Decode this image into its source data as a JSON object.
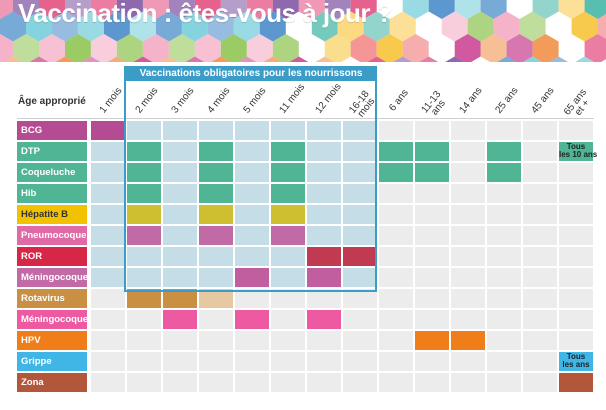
{
  "title": "Vaccination : êtes-vous à jour ?",
  "header": {
    "age_label": "Âge approprié",
    "nourrissons_label": "Vaccinations obligatoires pour les nourrissons"
  },
  "ages": [
    "1 mois",
    "2 mois",
    "3 mois",
    "4 mois",
    "5 mois",
    "11 mois",
    "12 mois",
    "16-18\nmois",
    "6 ans",
    "11-13\nans",
    "14 ans",
    "25 ans",
    "45 ans",
    "65 ans\net +"
  ],
  "vaccines": [
    {
      "name": "BCG",
      "color": "#b54c93",
      "text": "#ffffff",
      "cells": [
        0
      ]
    },
    {
      "name": "DTP",
      "color": "#4fb594",
      "text": "#ffffff",
      "cells": [
        1,
        3,
        5,
        8,
        9,
        11,
        13
      ],
      "note": {
        "col": 13,
        "text": "Tous\nles 10 ans"
      }
    },
    {
      "name": "Coqueluche",
      "color": "#4fb594",
      "text": "#ffffff",
      "cells": [
        1,
        3,
        5,
        8,
        9,
        11
      ]
    },
    {
      "name": "Hib",
      "color": "#4fb594",
      "text": "#ffffff",
      "cells": [
        1,
        3,
        5
      ]
    },
    {
      "name": "Hépatite B",
      "color": "#f2c200",
      "text": "#333333",
      "cells": [
        1,
        3,
        5
      ],
      "cell_color": "#cdbf2f"
    },
    {
      "name": "Pneumocoque",
      "color": "#e06aa6",
      "text": "#ffffff",
      "cells": [
        1,
        3,
        5
      ],
      "cell_color": "#c06ba6"
    },
    {
      "name": "ROR",
      "color": "#d62846",
      "text": "#ffffff",
      "cells": [
        6,
        7
      ],
      "cell_color": "#c03a52"
    },
    {
      "name": "Méningocoque C",
      "color": "#c26aa6",
      "text": "#ffffff",
      "cells": [
        4,
        6
      ],
      "cell_color": "#c05ea0"
    },
    {
      "name": "Rotavirus",
      "color": "#c98f43",
      "text": "#ffffff",
      "cells": [
        1,
        2,
        3
      ],
      "cell_color": "#c98f43",
      "light_cells": [
        3
      ]
    },
    {
      "name": "Méningocoque B",
      "color": "#ee5aa2",
      "text": "#ffffff",
      "cells": [
        2,
        4,
        6
      ]
    },
    {
      "name": "HPV",
      "color": "#ef7d1a",
      "text": "#ffffff",
      "cells": [
        9,
        10
      ]
    },
    {
      "name": "Grippe",
      "color": "#3fb6e6",
      "text": "#ffffff",
      "cells": [
        13
      ],
      "note": {
        "col": 13,
        "text": "Tous\nles ans"
      }
    },
    {
      "name": "Zona",
      "color": "#b3573a",
      "text": "#ffffff",
      "cells": [
        13
      ]
    }
  ]
}
